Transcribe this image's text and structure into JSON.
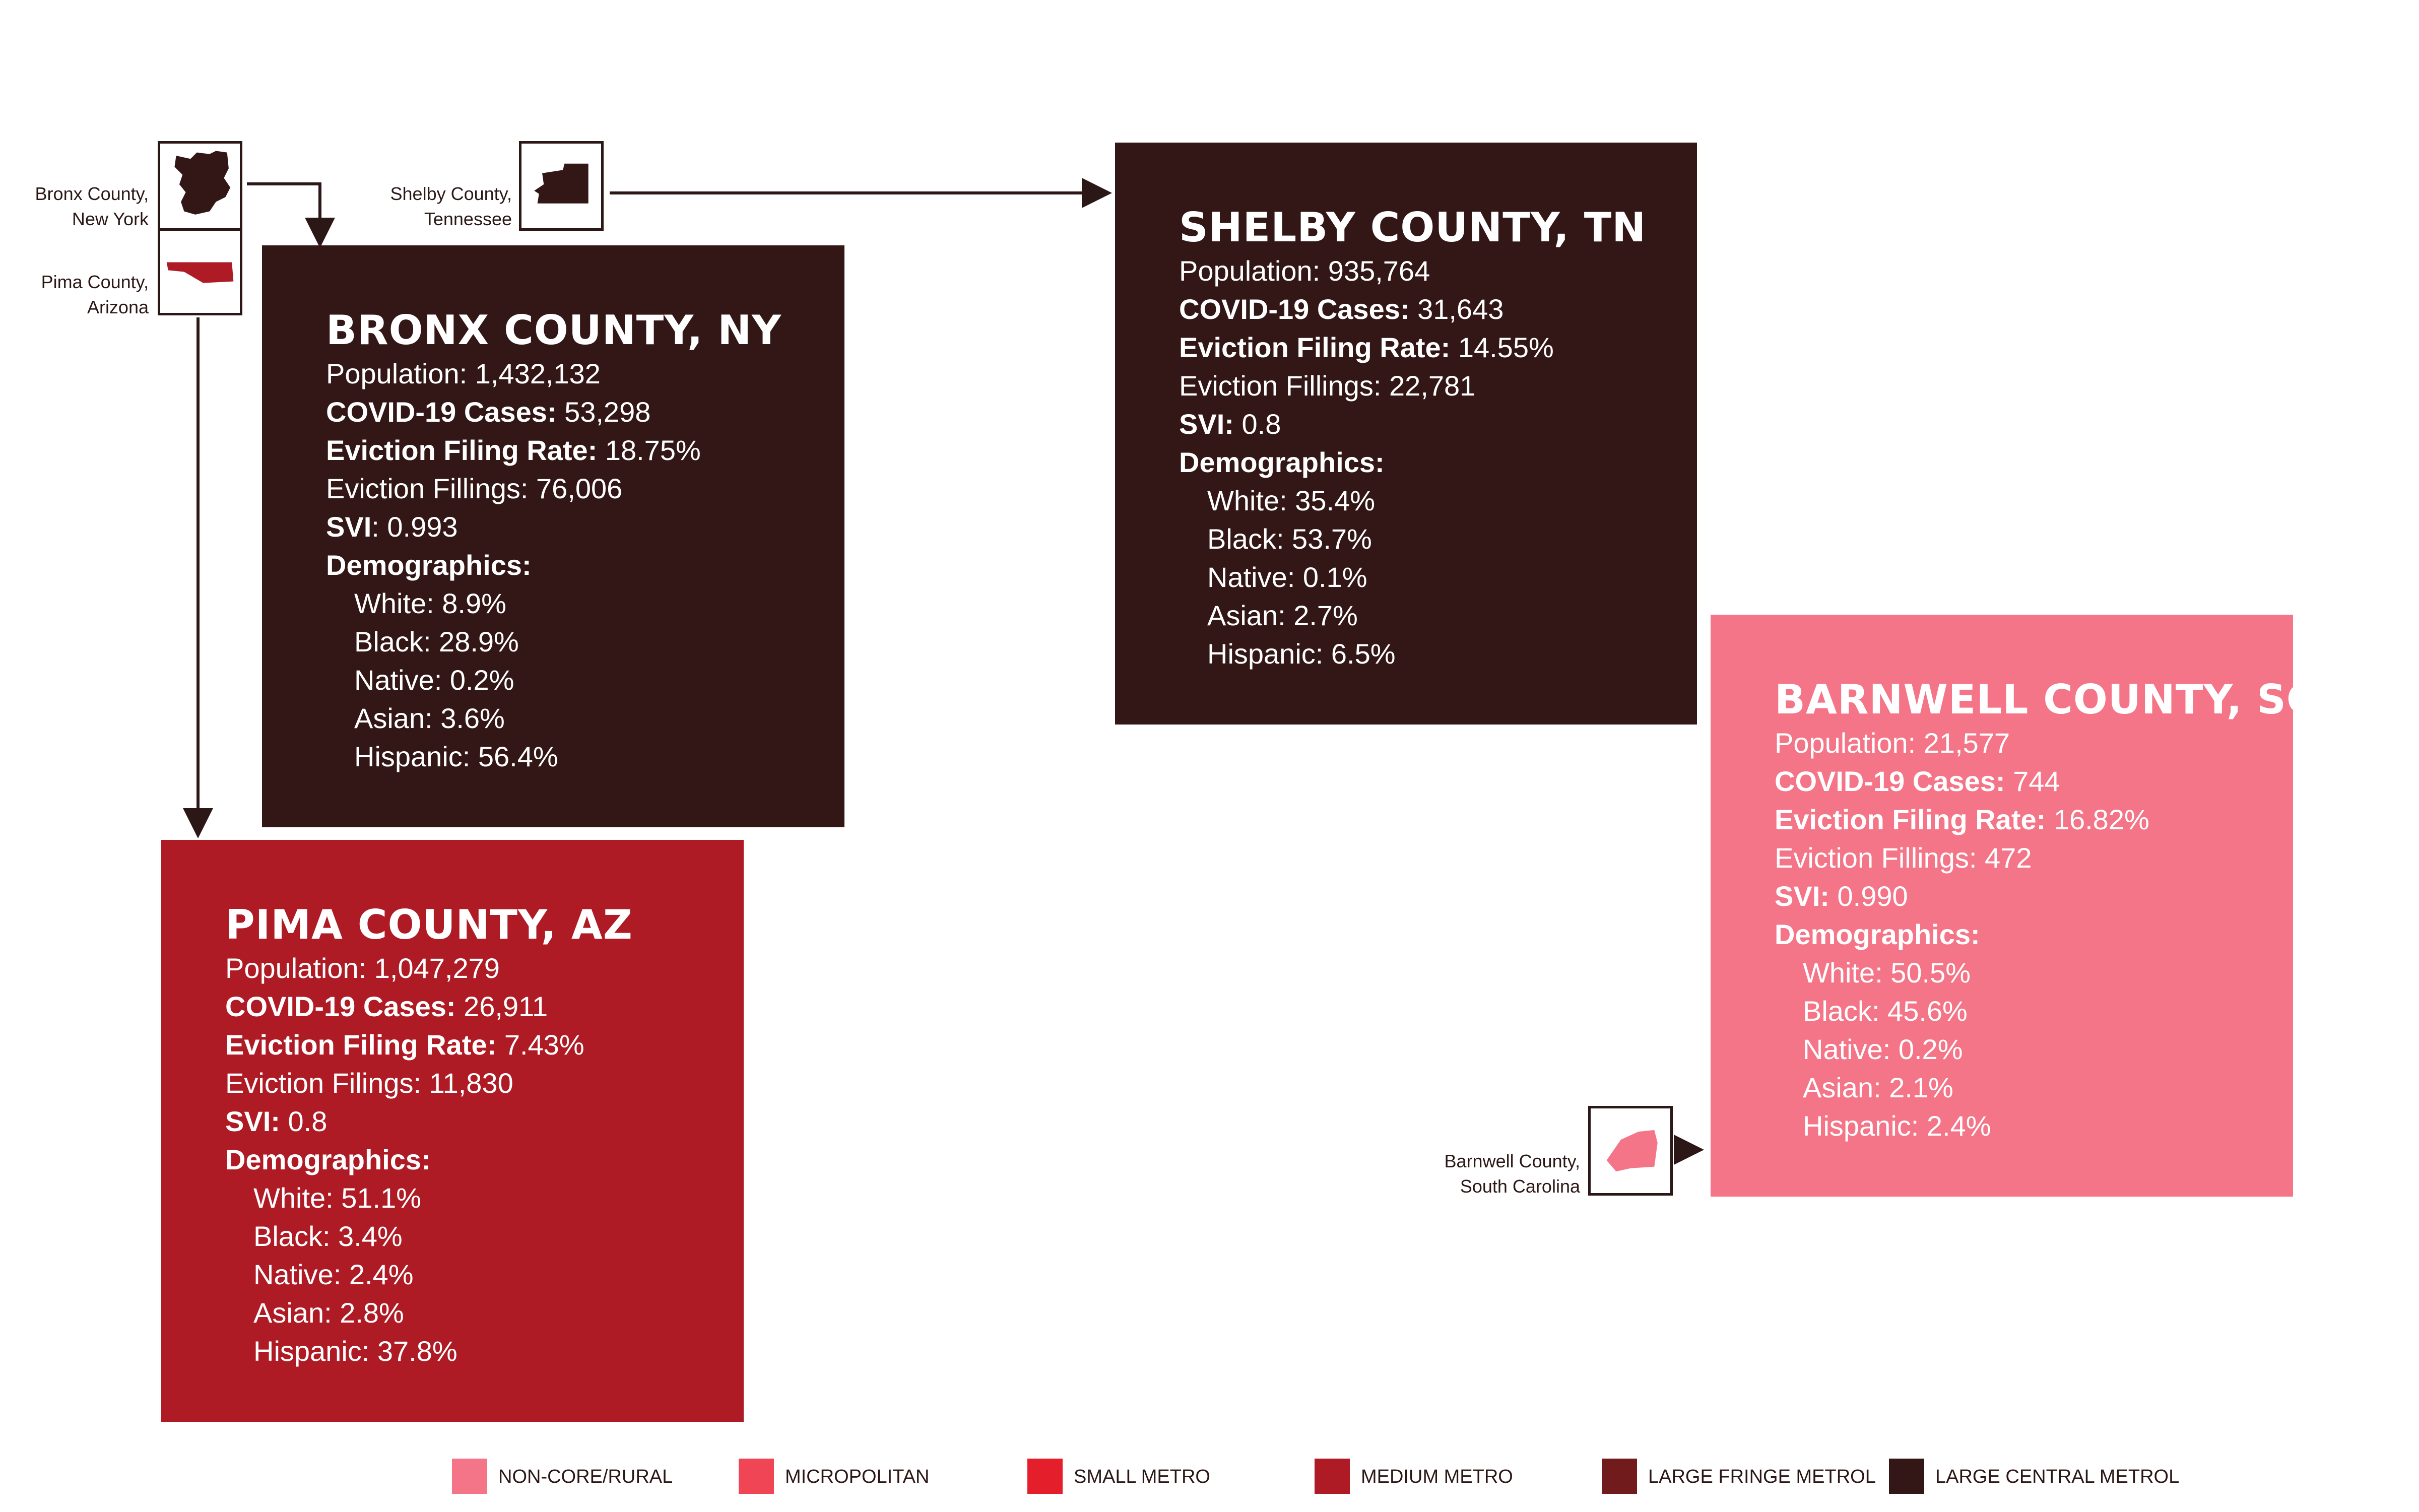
{
  "colors": {
    "non_core_rural": "#f47588",
    "micropolitan": "#ef4555",
    "small_metro": "#e41e2b",
    "medium_metro": "#ae1b25",
    "large_fringe_metro": "#711b1d",
    "large_central_metro": "#321716",
    "line": "#2b1716"
  },
  "thumbnails": {
    "bronx": {
      "label_line1": "Bronx County,",
      "label_line2": "New York",
      "shape": "bronx-map-icon"
    },
    "pima": {
      "label_line1": "Pima County,",
      "label_line2": "Arizona",
      "shape": "pima-map-icon"
    },
    "shelby": {
      "label_line1": "Shelby County,",
      "label_line2": "Tennessee",
      "shape": "shelby-map-icon"
    },
    "barnwell": {
      "label_line1": "Barnwell County,",
      "label_line2": "South Carolina",
      "shape": "barnwell-map-icon"
    }
  },
  "cards": {
    "bronx": {
      "title": "BRONX COUNTY, NY",
      "population_label": "Population:",
      "population_value": "1,432,132",
      "covid_label": "COVID-19 Cases:",
      "covid_value": "53,298",
      "eviction_rate_label": "Eviction Filing Rate:",
      "eviction_rate_value": "18.75%",
      "eviction_fillings_label": "Eviction Fillings:",
      "eviction_fillings_value": "76,006",
      "svi_label": "SVI",
      "svi_value": ": 0.993",
      "demographics_label": "Demographics:",
      "white": "White: 8.9%",
      "black": "Black: 28.9%",
      "native": "Native: 0.2%",
      "asian": "Asian: 3.6%",
      "hispanic": "Hispanic: 56.4%"
    },
    "shelby": {
      "title": "SHELBY COUNTY, TN",
      "population_label": "Population:",
      "population_value": "935,764",
      "covid_label": "COVID-19 Cases:",
      "covid_value": "31,643",
      "eviction_rate_label": "Eviction Filing Rate:",
      "eviction_rate_value": "14.55%",
      "eviction_fillings_label": "Eviction Fillings:",
      "eviction_fillings_value": "22,781",
      "svi_label": "SVI:",
      "svi_value": "0.8",
      "demographics_label": "Demographics:",
      "white": "White: 35.4%",
      "black": "Black: 53.7%",
      "native": "Native: 0.1%",
      "asian": "Asian: 2.7%",
      "hispanic": "Hispanic: 6.5%"
    },
    "pima": {
      "title": "PIMA COUNTY, AZ",
      "population_label": "Population:",
      "population_value": "1,047,279",
      "covid_label": "COVID-19 Cases:",
      "covid_value": "26,911",
      "eviction_rate_label": "Eviction Filing Rate:",
      "eviction_rate_value": "7.43%",
      "eviction_fillings_label": "Eviction Filings:",
      "eviction_fillings_value": "11,830",
      "svi_label": "SVI:",
      "svi_value": "0.8",
      "demographics_label": "Demographics:",
      "white": "White: 51.1%",
      "black": "Black: 3.4%",
      "native": "Native: 2.4%",
      "asian": "Asian: 2.8%",
      "hispanic": "Hispanic: 37.8%"
    },
    "barnwell": {
      "title": "BARNWELL COUNTY, SC",
      "population_label": "Population:",
      "population_value": "21,577",
      "covid_label": "COVID-19 Cases:",
      "covid_value": "744",
      "eviction_rate_label": "Eviction Filing Rate:",
      "eviction_rate_value": "16.82%",
      "eviction_fillings_label": "Eviction Fillings:",
      "eviction_fillings_value": "472",
      "svi_label": "SVI:",
      "svi_value": "0.990",
      "demographics_label": "Demographics:",
      "white": "White: 50.5%",
      "black": "Black: 45.6%",
      "native": "Native: 0.2%",
      "asian": "Asian: 2.1%",
      "hispanic": "Hispanic: 2.4%"
    }
  },
  "legend": [
    {
      "label": "NON-CORE/RURAL",
      "color_key": "non_core_rural"
    },
    {
      "label": "MICROPOLITAN",
      "color_key": "micropolitan"
    },
    {
      "label": "SMALL METRO",
      "color_key": "small_metro"
    },
    {
      "label": "MEDIUM METRO",
      "color_key": "medium_metro"
    },
    {
      "label": "LARGE FRINGE METROL",
      "color_key": "large_fringe_metro"
    },
    {
      "label": "LARGE CENTRAL METROL",
      "color_key": "large_central_metro"
    }
  ]
}
